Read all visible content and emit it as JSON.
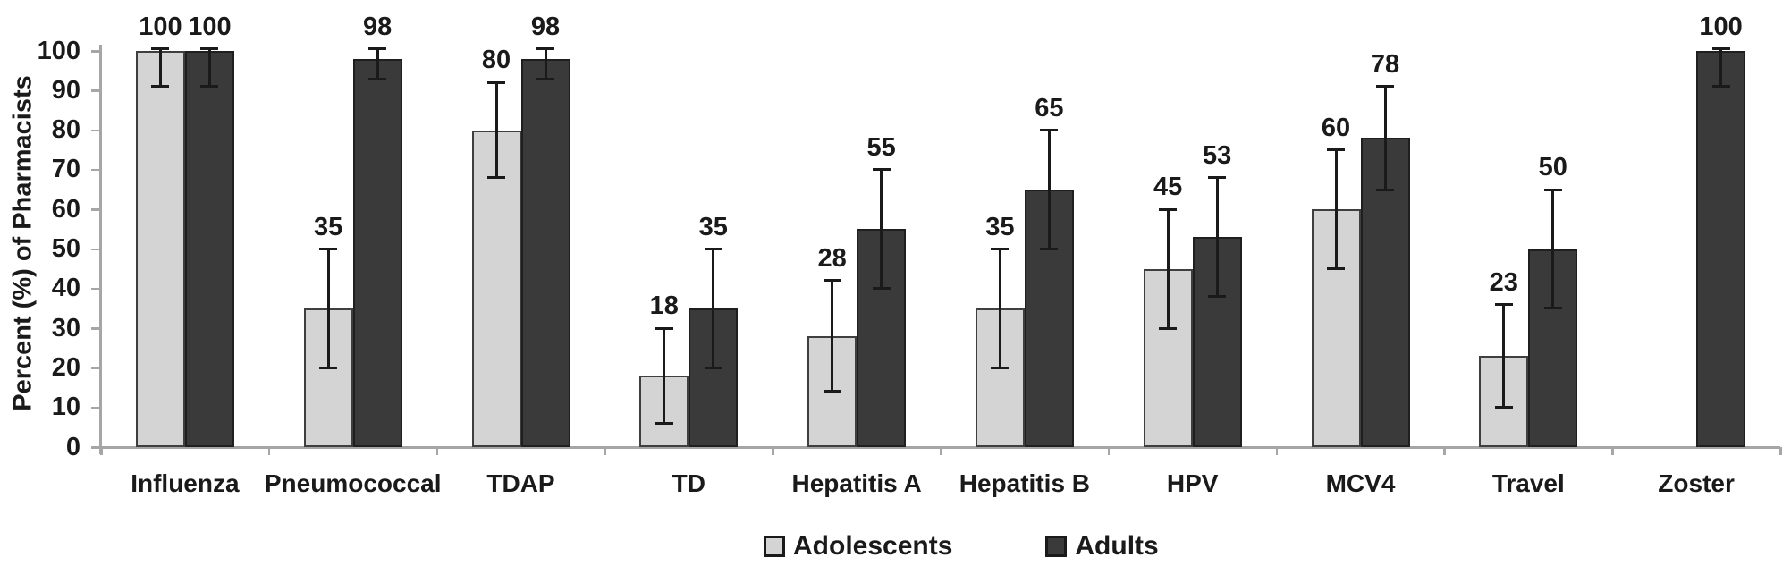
{
  "chart_data": {
    "type": "bar",
    "title": "",
    "xlabel": "",
    "ylabel": "Percent (%) of Pharmacists",
    "ylim": [
      0,
      100
    ],
    "ytick_step": 10,
    "grid": false,
    "legend_position": "bottom",
    "categories": [
      "Influenza",
      "Pneumococcal",
      "TDAP",
      "TD",
      "Hepatitis A",
      "Hepatitis B",
      "HPV",
      "MCV4",
      "Travel",
      "Zoster"
    ],
    "series": [
      {
        "name": "Adolescents",
        "color": "#d4d4d4",
        "border_color": "#3f3f3f",
        "values": [
          100,
          35,
          80,
          18,
          28,
          35,
          45,
          60,
          23,
          null
        ],
        "errors": [
          9,
          15,
          12,
          12,
          14,
          15,
          15,
          15,
          13,
          null
        ]
      },
      {
        "name": "Adults",
        "color": "#3a3a3a",
        "border_color": "#1f1f1f",
        "values": [
          100,
          98,
          98,
          35,
          55,
          65,
          53,
          78,
          50,
          100
        ],
        "errors": [
          9,
          5,
          5,
          15,
          15,
          15,
          15,
          13,
          15,
          9
        ]
      }
    ],
    "bar_value_labels_shown": true,
    "error_bar_color": "#1a1a1a",
    "axis_color": "#a6a6a6",
    "text_color": "#1a1a1a",
    "background_color": "#ffffff"
  }
}
